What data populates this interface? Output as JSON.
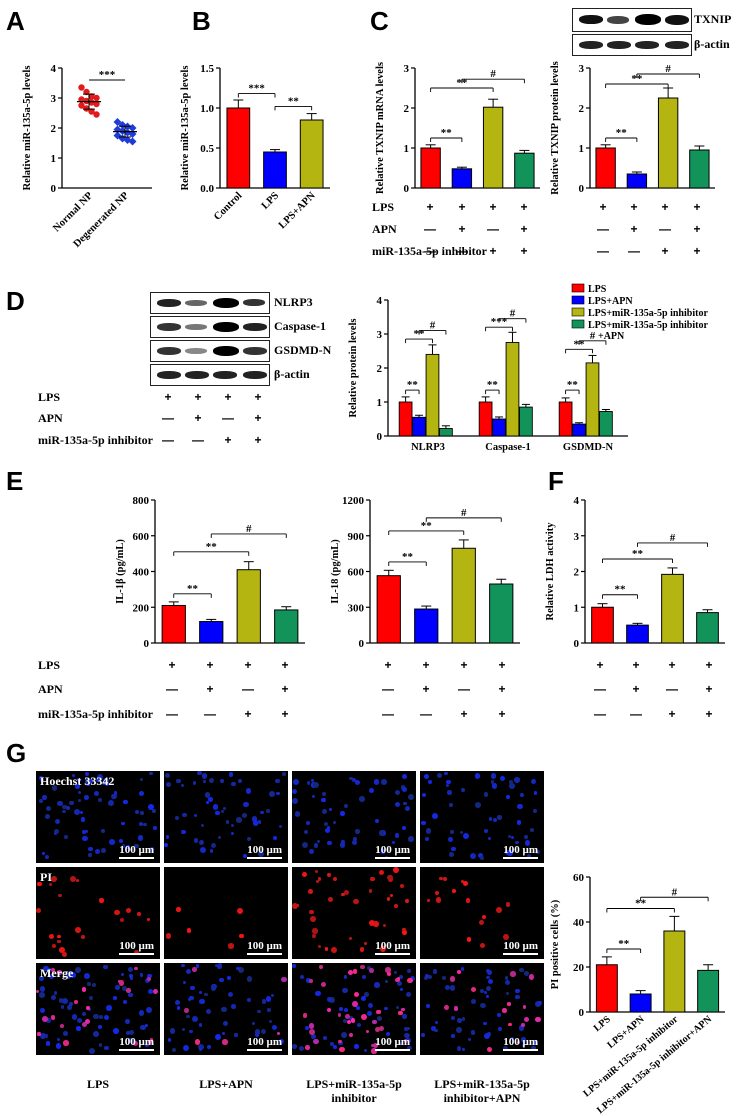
{
  "panel_labels": {
    "A": "A",
    "B": "B",
    "C": "C",
    "D": "D",
    "E": "E",
    "F": "F",
    "G": "G"
  },
  "colors": {
    "red": "#ff0000",
    "blue": "#0000ff",
    "olive": "#b5b512",
    "green": "#12935a",
    "scatter_red": "#e31a1c",
    "scatter_blue": "#1f3bd8"
  },
  "treatment_table": {
    "rows": [
      {
        "label": "LPS",
        "symbols": [
          "+",
          "+",
          "+",
          "+"
        ]
      },
      {
        "label": "APN",
        "symbols": [
          "—",
          "+",
          "—",
          "+"
        ]
      },
      {
        "label": "miR-135a-5p inhibitor",
        "symbols": [
          "—",
          "—",
          "+",
          "+"
        ]
      }
    ]
  },
  "blots": {
    "C": {
      "labels": [
        "TXNIP",
        "β-actin"
      ]
    },
    "D": {
      "labels": [
        "NLRP3",
        "Caspase-1",
        "GSDMD-N",
        "β-actin"
      ]
    }
  },
  "micrographs": {
    "rows": [
      "Hoechst 33342",
      "PI",
      "Merge"
    ],
    "scale_bar": "100 µm",
    "columns": [
      "LPS",
      "LPS+APN",
      "LPS+miR-135a-5p inhibitor",
      "LPS+miR-135a-5p inhibitor+APN"
    ]
  },
  "chart_data": [
    {
      "id": "A",
      "type": "scatter",
      "ylabel": "Relative miR-135a-5p levels",
      "ylim": [
        0,
        4
      ],
      "yticks": [
        0,
        1,
        2,
        3,
        4
      ],
      "categories": [
        "Normal NP",
        "Degenerated NP"
      ],
      "series": [
        {
          "values": [
            3.35,
            3.2,
            3.05,
            3.0,
            2.95,
            2.9,
            2.85,
            2.8,
            2.75,
            2.65,
            2.55,
            2.45
          ],
          "mean": 2.88,
          "sd": 0.25
        },
        {
          "values": [
            2.2,
            2.1,
            2.05,
            2.0,
            1.95,
            1.9,
            1.85,
            1.8,
            1.75,
            1.65,
            1.6,
            1.55
          ],
          "mean": 1.88,
          "sd": 0.18
        }
      ],
      "annotations": [
        {
          "text": "***",
          "between": [
            0,
            1
          ],
          "y": 3.6
        }
      ]
    },
    {
      "id": "B",
      "type": "bar",
      "ylabel": "Relative miR-135a-5p levels",
      "ylim": [
        0,
        1.5
      ],
      "yticks": [
        0,
        0.5,
        1.0,
        1.5
      ],
      "categories": [
        "Control",
        "LPS",
        "LPS+APN"
      ],
      "values": [
        1.0,
        0.45,
        0.85
      ],
      "errors": [
        0.1,
        0.03,
        0.08
      ],
      "annotations": [
        {
          "text": "***",
          "between": [
            0,
            1
          ],
          "y": 1.18
        },
        {
          "text": "**",
          "between": [
            1,
            2
          ],
          "y": 1.02
        }
      ]
    },
    {
      "id": "C1",
      "type": "bar",
      "ylabel": "Relative TXNIP mRNA levels",
      "ylim": [
        0,
        3
      ],
      "yticks": [
        0,
        1,
        2,
        3
      ],
      "values": [
        1.0,
        0.48,
        2.02,
        0.87
      ],
      "errors": [
        0.08,
        0.04,
        0.2,
        0.07
      ],
      "annotations": [
        {
          "text": "**",
          "between": [
            0,
            1
          ],
          "y": 1.25
        },
        {
          "text": "**",
          "between": [
            0,
            2
          ],
          "y": 2.5
        },
        {
          "text": "#",
          "between": [
            1,
            3
          ],
          "y": 2.72
        }
      ]
    },
    {
      "id": "C2",
      "type": "bar",
      "ylabel": "Relative TXNIP protein levels",
      "ylim": [
        0,
        3
      ],
      "yticks": [
        0,
        1,
        2,
        3
      ],
      "values": [
        1.0,
        0.35,
        2.25,
        0.95
      ],
      "errors": [
        0.08,
        0.05,
        0.25,
        0.1
      ],
      "annotations": [
        {
          "text": "**",
          "between": [
            0,
            1
          ],
          "y": 1.25
        },
        {
          "text": "**",
          "between": [
            0,
            2
          ],
          "y": 2.6
        },
        {
          "text": "#",
          "between": [
            1,
            3
          ],
          "y": 2.85
        }
      ]
    },
    {
      "id": "D",
      "type": "bar",
      "ylabel": "Relative protein levels",
      "ylim": [
        0,
        4
      ],
      "yticks": [
        0,
        1,
        2,
        3,
        4
      ],
      "categories": [
        "NLRP3",
        "Caspase-1",
        "GSDMD-N"
      ],
      "series": [
        {
          "name": "LPS",
          "values": [
            1.0,
            1.0,
            1.0
          ],
          "errors": [
            0.15,
            0.15,
            0.12
          ]
        },
        {
          "name": "LPS+APN",
          "values": [
            0.55,
            0.5,
            0.35
          ],
          "errors": [
            0.06,
            0.06,
            0.04
          ]
        },
        {
          "name": "LPS+miR-135a-5p inhibitor",
          "values": [
            2.4,
            2.75,
            2.15
          ],
          "errors": [
            0.28,
            0.3,
            0.22
          ]
        },
        {
          "name": "LPS+miR-135a-5p inhibitor\n+APN",
          "values": [
            0.22,
            0.85,
            0.72
          ],
          "errors": [
            0.08,
            0.08,
            0.06
          ]
        }
      ],
      "annotations": [
        {
          "group": 0,
          "text": "**",
          "pair": [
            0,
            1
          ],
          "y": 1.35
        },
        {
          "group": 0,
          "text": "**",
          "pair": [
            0,
            2
          ],
          "y": 2.85
        },
        {
          "group": 0,
          "text": "#",
          "pair": [
            1,
            3
          ],
          "y": 3.1
        },
        {
          "group": 1,
          "text": "**",
          "pair": [
            0,
            1
          ],
          "y": 1.35
        },
        {
          "group": 1,
          "text": "***",
          "pair": [
            0,
            2
          ],
          "y": 3.2
        },
        {
          "group": 1,
          "text": "#",
          "pair": [
            1,
            3
          ],
          "y": 3.45
        },
        {
          "group": 2,
          "text": "**",
          "pair": [
            0,
            1
          ],
          "y": 1.35
        },
        {
          "group": 2,
          "text": "**",
          "pair": [
            0,
            2
          ],
          "y": 2.55
        },
        {
          "group": 2,
          "text": "#",
          "pair": [
            1,
            3
          ],
          "y": 2.8
        }
      ]
    },
    {
      "id": "E1",
      "type": "bar",
      "ylabel": "IL-1β (pg/mL)",
      "ylim": [
        0,
        800
      ],
      "yticks": [
        0,
        200,
        400,
        600,
        800
      ],
      "values": [
        210,
        120,
        410,
        185
      ],
      "errors": [
        20,
        12,
        45,
        18
      ],
      "annotations": [
        {
          "text": "**",
          "between": [
            0,
            1
          ],
          "y": 275
        },
        {
          "text": "**",
          "between": [
            0,
            2
          ],
          "y": 510
        },
        {
          "text": "#",
          "between": [
            1,
            3
          ],
          "y": 610
        }
      ]
    },
    {
      "id": "E2",
      "type": "bar",
      "ylabel": "IL-18 (pg/mL)",
      "ylim": [
        0,
        1200
      ],
      "yticks": [
        0,
        300,
        600,
        900,
        1200
      ],
      "values": [
        565,
        285,
        795,
        495
      ],
      "errors": [
        45,
        25,
        70,
        40
      ],
      "annotations": [
        {
          "text": "**",
          "between": [
            0,
            1
          ],
          "y": 680
        },
        {
          "text": "**",
          "between": [
            0,
            2
          ],
          "y": 940
        },
        {
          "text": "#",
          "between": [
            1,
            3
          ],
          "y": 1050
        }
      ]
    },
    {
      "id": "F",
      "type": "bar",
      "ylabel": "Relative LDH activity",
      "ylim": [
        0,
        4
      ],
      "yticks": [
        0,
        1,
        2,
        3,
        4
      ],
      "values": [
        1.0,
        0.5,
        1.92,
        0.85
      ],
      "errors": [
        0.1,
        0.05,
        0.18,
        0.08
      ],
      "annotations": [
        {
          "text": "**",
          "between": [
            0,
            1
          ],
          "y": 1.35
        },
        {
          "text": "**",
          "between": [
            0,
            2
          ],
          "y": 2.35
        },
        {
          "text": "#",
          "between": [
            1,
            3
          ],
          "y": 2.8
        }
      ]
    },
    {
      "id": "G",
      "type": "bar",
      "ylabel": "PI positive cells (%)",
      "ylim": [
        0,
        60
      ],
      "yticks": [
        0,
        20,
        40,
        60
      ],
      "categories": [
        "LPS",
        "LPS+APN",
        "LPS+miR-135a-5p inhibitor",
        "LPS+miR-135a-5p inhibitor+APN"
      ],
      "values": [
        21,
        8,
        36,
        18.5
      ],
      "errors": [
        3.5,
        1.5,
        6.5,
        2.5
      ],
      "annotations": [
        {
          "text": "**",
          "between": [
            0,
            1
          ],
          "y": 28
        },
        {
          "text": "**",
          "between": [
            0,
            2
          ],
          "y": 46
        },
        {
          "text": "#",
          "between": [
            1,
            3
          ],
          "y": 51
        }
      ]
    }
  ]
}
